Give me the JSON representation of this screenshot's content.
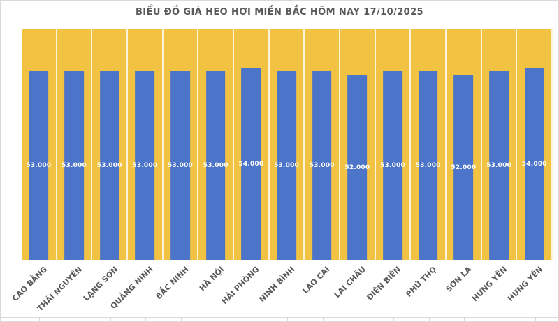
{
  "header": {
    "title": "BIỂU ĐỒ GIÁ HEO HƠI MIỀN BẮC HÔM NAY 17/10/2025"
  },
  "colors": {
    "plot_background": "#F2C242",
    "bar_fill": "#4C74C8",
    "axis_text": "#595959",
    "value_text": "#FFFFFF",
    "gridline": "#FFFFFF",
    "chart_border": "#D9D9D9",
    "chart_background": "#FFFFFF"
  },
  "chart_data": {
    "type": "bar",
    "title": "BIỂU ĐỒ GIÁ HEO HƠI MIỀN BẮC HÔM NAY 17/10/2025",
    "categories": [
      "CAO BẰNG",
      "THÁI NGUYÊN",
      "LẠNG SƠN",
      "QUẢNG NINH",
      "BẮC NINH",
      "HÀ NỘI",
      "HẢI PHÒNG",
      "NINH BÌNH",
      "LÀO CAI",
      "LAI CHÂU",
      "ĐIỆN BIÊN",
      "PHÚ THỌ",
      "SƠN LA",
      "HƯNG YÊN",
      "HƯNG YÊN"
    ],
    "values": [
      53000,
      53000,
      53000,
      53000,
      53000,
      53000,
      54000,
      53000,
      53000,
      52000,
      53000,
      53000,
      52000,
      53000,
      54000
    ],
    "value_labels": [
      "53.000",
      "53.000",
      "53.000",
      "53.000",
      "53.000",
      "53.000",
      "54.000",
      "53.000",
      "53.000",
      "52.000",
      "53.000",
      "53.000",
      "52.000",
      "53.000",
      "54.000"
    ],
    "xlabel": "",
    "ylabel": "",
    "ylim": [
      0,
      65000
    ],
    "legend": "none",
    "grid": "vertical category separators only",
    "value_label_position": "center-of-bar",
    "x_label_rotation_deg": -45
  }
}
